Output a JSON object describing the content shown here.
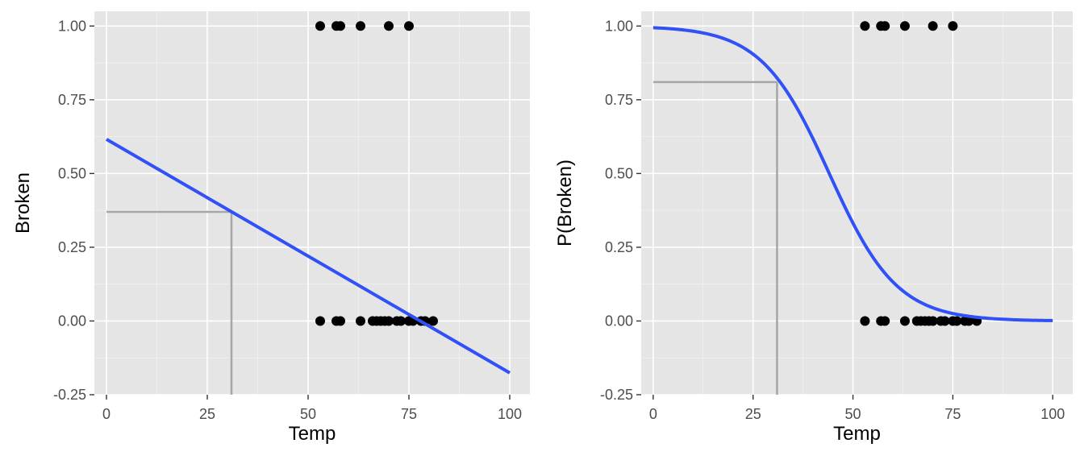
{
  "chart_data": [
    {
      "type": "scatter",
      "title": "",
      "xlabel": "Temp",
      "ylabel": "Broken",
      "xlim": [
        -3,
        105
      ],
      "ylim": [
        -0.25,
        1.05
      ],
      "xticks": [
        0,
        25,
        50,
        75,
        100
      ],
      "xtick_labels": [
        "0",
        "25",
        "50",
        "75",
        "100"
      ],
      "yticks": [
        -0.25,
        0,
        0.25,
        0.5,
        0.75,
        1
      ],
      "ytick_labels": [
        "-0.25",
        "0.00",
        "0.25",
        "0.50",
        "0.75",
        "1.00"
      ],
      "grid": true,
      "series": [
        {
          "kind": "points",
          "color": "#000000",
          "points": [
            [
              53,
              1
            ],
            [
              57,
              1
            ],
            [
              58,
              1
            ],
            [
              63,
              1
            ],
            [
              70,
              1
            ],
            [
              75,
              1
            ],
            [
              53,
              0
            ],
            [
              57,
              0
            ],
            [
              58,
              0
            ],
            [
              63,
              0
            ],
            [
              66,
              0
            ],
            [
              67,
              0
            ],
            [
              68,
              0
            ],
            [
              69,
              0
            ],
            [
              70,
              0
            ],
            [
              72,
              0
            ],
            [
              73,
              0
            ],
            [
              75,
              0
            ],
            [
              76,
              0
            ],
            [
              78,
              0
            ],
            [
              79,
              0
            ],
            [
              81,
              0
            ]
          ]
        },
        {
          "kind": "linear-fit",
          "color": "#3050f8",
          "x": [
            0,
            100
          ],
          "y": [
            0.616,
            -0.176
          ]
        },
        {
          "kind": "reference",
          "color": "#a6a6a6",
          "x": 31,
          "y": 0.37
        }
      ]
    },
    {
      "type": "scatter",
      "title": "",
      "xlabel": "Temp",
      "ylabel": "P(Broken)",
      "xlim": [
        -3,
        105
      ],
      "ylim": [
        -0.25,
        1.05
      ],
      "xticks": [
        0,
        25,
        50,
        75,
        100
      ],
      "xtick_labels": [
        "0",
        "25",
        "50",
        "75",
        "100"
      ],
      "yticks": [
        -0.25,
        0,
        0.25,
        0.5,
        0.75,
        1
      ],
      "ytick_labels": [
        "-0.25",
        "0.00",
        "0.25",
        "0.50",
        "0.75",
        "1.00"
      ],
      "grid": true,
      "series": [
        {
          "kind": "points",
          "color": "#000000",
          "points": [
            [
              53,
              1
            ],
            [
              57,
              1
            ],
            [
              58,
              1
            ],
            [
              63,
              1
            ],
            [
              70,
              1
            ],
            [
              75,
              1
            ],
            [
              53,
              0
            ],
            [
              57,
              0
            ],
            [
              58,
              0
            ],
            [
              63,
              0
            ],
            [
              66,
              0
            ],
            [
              67,
              0
            ],
            [
              68,
              0
            ],
            [
              69,
              0
            ],
            [
              70,
              0
            ],
            [
              72,
              0
            ],
            [
              73,
              0
            ],
            [
              75,
              0
            ],
            [
              76,
              0
            ],
            [
              78,
              0
            ],
            [
              79,
              0
            ],
            [
              81,
              0
            ]
          ]
        },
        {
          "kind": "logistic-fit",
          "color": "#3050f8",
          "intercept": 5.2,
          "slope": -0.118,
          "x_range": [
            0,
            100
          ]
        },
        {
          "kind": "reference",
          "color": "#a6a6a6",
          "x": 31,
          "y": 0.81
        }
      ]
    }
  ]
}
